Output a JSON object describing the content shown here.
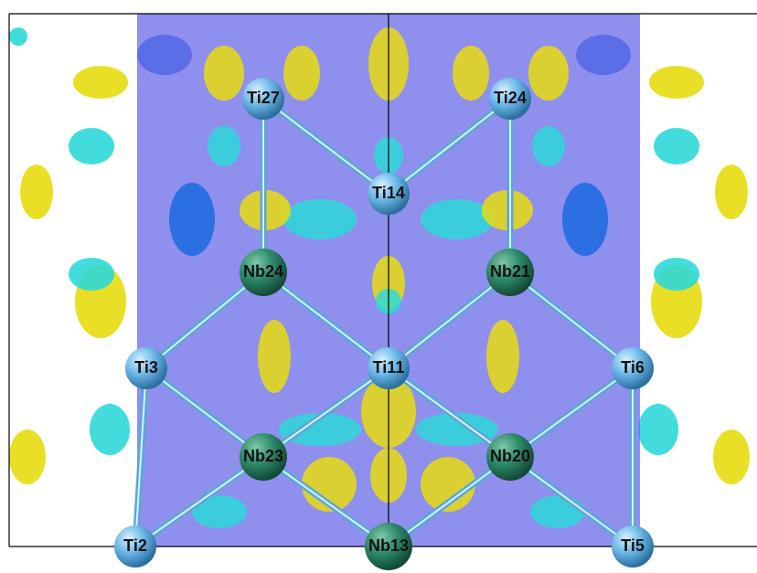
{
  "nodes": [
    {
      "label": "Ti27"
    },
    {
      "label": "Ti24"
    },
    {
      "label": "Ti14"
    },
    {
      "label": "Nb24"
    },
    {
      "label": "Nb21"
    },
    {
      "label": "Ti3"
    },
    {
      "label": "Ti11"
    },
    {
      "label": "Ti6"
    },
    {
      "label": "Nb23"
    },
    {
      "label": "Nb20"
    },
    {
      "label": "Ti2"
    },
    {
      "label": "Nb13"
    },
    {
      "label": "Ti5"
    }
  ]
}
